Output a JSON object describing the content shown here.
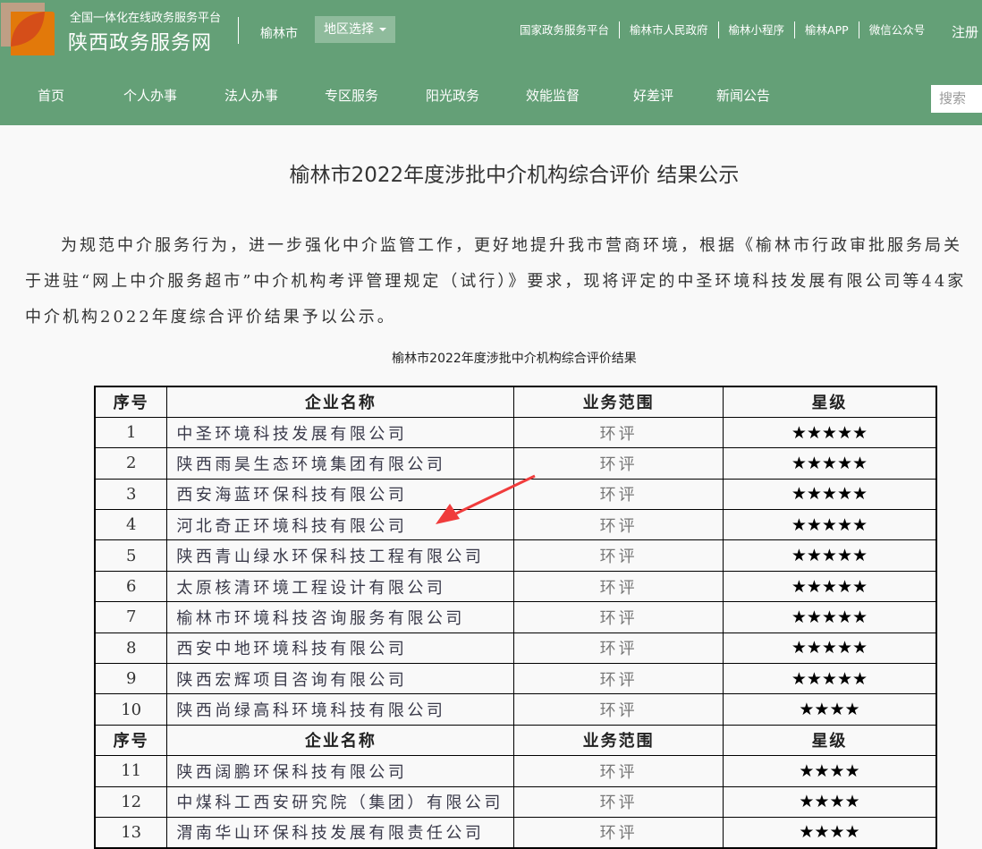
{
  "header": {
    "platform": "全国一体化在线政务服务平台",
    "brand": "陕西政务服务网",
    "city": "榆林市",
    "region_select": "地区选择",
    "top_links": [
      "国家政务服务平台",
      "榆林市人民政府",
      "榆林小程序",
      "榆林APP",
      "微信公众号"
    ],
    "register": "注册",
    "nav": [
      "首页",
      "个人办事",
      "法人办事",
      "专区服务",
      "阳光政务",
      "效能监督",
      "好差评",
      "新闻公告"
    ],
    "search_placeholder": "搜索"
  },
  "article": {
    "title": "榆林市2022年度涉批中介机构综合评价 结果公示",
    "paragraph": "为规范中介服务行为，进一步强化中介监管工作，更好地提升我市营商环境，根据《榆林市行政审批服务局关于进驻“网上中介服务超市”中介机构考评管理规定（试行）》要求，现将评定的中圣环境科技发展有限公司等44家中介机构2022年度综合评价结果予以公示。",
    "table_title": "榆林市2022年度涉批中介机构综合评价结果"
  },
  "table": {
    "headers": [
      "序号",
      "企业名称",
      "业务范围",
      "星级"
    ],
    "rows": [
      [
        "1",
        "中圣环境科技发展有限公司",
        "环评",
        "★★★★★"
      ],
      [
        "2",
        "陕西雨昊生态环境集团有限公司",
        "环评",
        "★★★★★"
      ],
      [
        "3",
        "西安海蓝环保科技有限公司",
        "环评",
        "★★★★★"
      ],
      [
        "4",
        "河北奇正环境科技有限公司",
        "环评",
        "★★★★★"
      ],
      [
        "5",
        "陕西青山绿水环保科技工程有限公司",
        "环评",
        "★★★★★"
      ],
      [
        "6",
        "太原核清环境工程设计有限公司",
        "环评",
        "★★★★★"
      ],
      [
        "7",
        "榆林市环境科技咨询服务有限公司",
        "环评",
        "★★★★★"
      ],
      [
        "8",
        "西安中地环境科技有限公司",
        "环评",
        "★★★★★"
      ],
      [
        "9",
        "陕西宏辉项目咨询有限公司",
        "环评",
        "★★★★★"
      ],
      [
        "10",
        "陕西尚绿高科环境科技有限公司",
        "环评",
        "★★★★"
      ],
      [
        "header"
      ],
      [
        "11",
        "陕西阔鹏环保科技有限公司",
        "环评",
        "★★★★"
      ],
      [
        "12",
        "中煤科工西安研究院（集团）有限公司",
        "环评",
        "★★★★"
      ],
      [
        "13",
        "渭南华山环保科技发展有限责任公司",
        "环评",
        "★★★★"
      ]
    ]
  },
  "colors": {
    "header_bg": "#64a077",
    "arrow": "#f03c3c"
  }
}
